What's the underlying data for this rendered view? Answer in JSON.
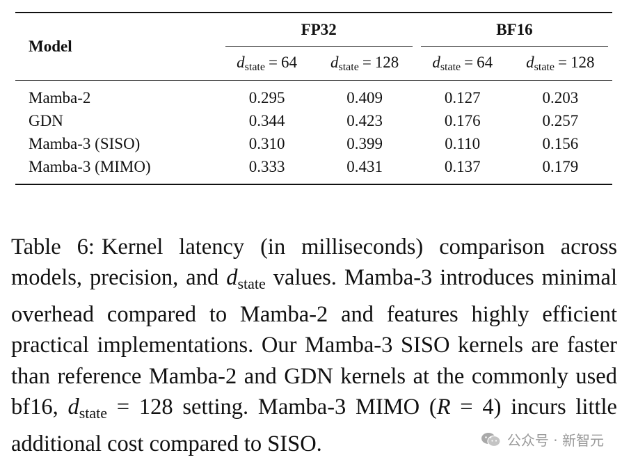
{
  "table": {
    "model_header": "Model",
    "groups": [
      "FP32",
      "BF16"
    ],
    "sub_headers": [
      {
        "var": "d",
        "sub": "state",
        "eq": "=",
        "value": "64"
      },
      {
        "var": "d",
        "sub": "state",
        "eq": "=",
        "value": "128"
      },
      {
        "var": "d",
        "sub": "state",
        "eq": "=",
        "value": "64"
      },
      {
        "var": "d",
        "sub": "state",
        "eq": "=",
        "value": "128"
      }
    ],
    "rows": [
      {
        "model": "Mamba-2",
        "values": [
          "0.295",
          "0.409",
          "0.127",
          "0.203"
        ]
      },
      {
        "model": "GDN",
        "values": [
          "0.344",
          "0.423",
          "0.176",
          "0.257"
        ]
      },
      {
        "model": "Mamba-3 (SISO)",
        "values": [
          "0.310",
          "0.399",
          "0.110",
          "0.156"
        ]
      },
      {
        "model": "Mamba-3 (MIMO)",
        "values": [
          "0.333",
          "0.431",
          "0.137",
          "0.179"
        ]
      }
    ]
  },
  "caption": {
    "label": "Table 6:",
    "part1": "Kernel latency (in milliseconds) comparison across models, precision, and ",
    "math1_var": "d",
    "math1_sub": "state",
    "part2": " values. Mamba-3 in­troduces minimal overhead compared to Mamba-2 and features highly efficient practical implementations. Our Mamba-3 SISO kernels are faster than reference Mamba-2 and GDN kernels at the commonly used bf16, ",
    "math2_var": "d",
    "math2_sub": "state",
    "math2_rest": " = 128",
    "part3": " setting. Mamba-3 MIMO (",
    "math3_var": "R",
    "math3_rest": " = 4",
    "part4": ") incurs little additional cost compared to SISO."
  },
  "watermark": {
    "text": "公众号 · 新智元",
    "icon": "wechat-icon",
    "color": "#9a9a9a"
  }
}
